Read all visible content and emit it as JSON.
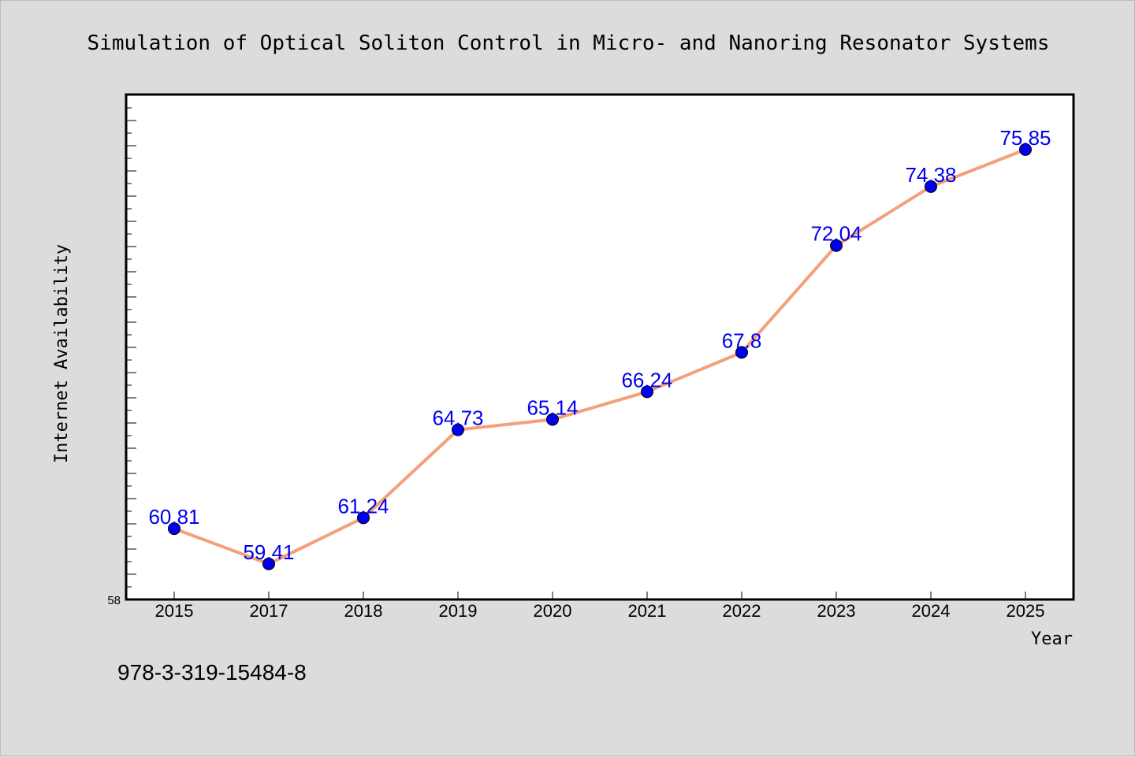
{
  "chart_data": {
    "type": "line",
    "title": "Simulation of Optical Soliton Control in Micro- and Nanoring Resonator Systems",
    "xlabel": "Year",
    "ylabel": "Internet Availability",
    "categories": [
      "2015",
      "2017",
      "2018",
      "2019",
      "2020",
      "2021",
      "2022",
      "2023",
      "2024",
      "2025"
    ],
    "series": [
      {
        "values": [
          60.81,
          59.41,
          61.24,
          64.73,
          65.14,
          66.24,
          67.8,
          72.04,
          74.38,
          75.85
        ],
        "labels": [
          "60.81",
          "59.41",
          "61.24",
          "64.73",
          "65.14",
          "66.24",
          "67.8",
          "72.04",
          "74.38",
          "75.85"
        ],
        "line_color": "#f4a07a",
        "marker_color": "#0000ee"
      }
    ],
    "ylim": [
      58,
      78
    ],
    "ytick_labels": [
      "58"
    ],
    "grid": false
  },
  "footnote": "978-3-319-15484-8"
}
